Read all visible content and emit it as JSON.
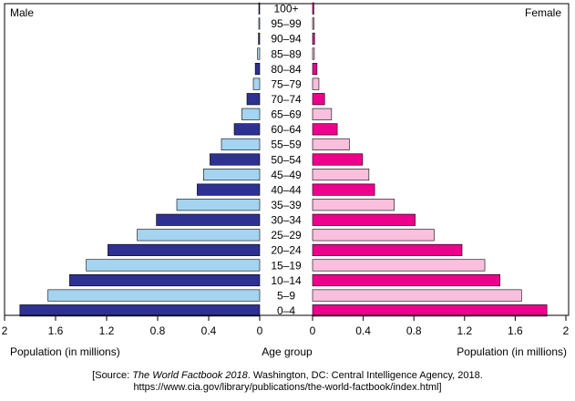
{
  "chart_data": {
    "type": "bar",
    "subtype": "population-pyramid",
    "left_label": "Male",
    "right_label": "Female",
    "center_label": "Age group",
    "xlabel_left": "Population (in millions)",
    "xlabel_right": "Population (in millions)",
    "xlim": [
      0,
      2
    ],
    "x_ticks": [
      2,
      1.6,
      1.2,
      0.8,
      0.4,
      0
    ],
    "categories": [
      "100+",
      "95–99",
      "90–94",
      "85–89",
      "80–84",
      "75–79",
      "70–74",
      "65–69",
      "60–64",
      "55–59",
      "50–54",
      "45–49",
      "40–44",
      "35–39",
      "30–34",
      "25–29",
      "20–24",
      "15–19",
      "10–14",
      "5–9",
      "0–4"
    ],
    "series": [
      {
        "name": "Male",
        "values": [
          0.001,
          0.004,
          0.01,
          0.017,
          0.035,
          0.05,
          0.1,
          0.14,
          0.2,
          0.3,
          0.39,
          0.44,
          0.49,
          0.65,
          0.81,
          0.96,
          1.19,
          1.36,
          1.49,
          1.66,
          1.88
        ]
      },
      {
        "name": "Female",
        "values": [
          0.01,
          0.012,
          0.016,
          0.014,
          0.035,
          0.05,
          0.095,
          0.15,
          0.195,
          0.29,
          0.395,
          0.445,
          0.49,
          0.645,
          0.81,
          0.96,
          1.18,
          1.36,
          1.48,
          1.65,
          1.85
        ]
      }
    ],
    "colors": {
      "male_dark": "#2e3192",
      "male_light": "#a5d4f0",
      "female_dark": "#ec008c",
      "female_light": "#f9bfdc",
      "outline": "#000000"
    },
    "grid": false
  },
  "source": {
    "prefix": "[Source: ",
    "title_italic": "The World Factbook 2018",
    "suffix": ". Washington, DC: Central Intelligence Agency, 2018.",
    "url": "https://www.cia.gov/library/publications/the-world-factbook/index.html]"
  }
}
